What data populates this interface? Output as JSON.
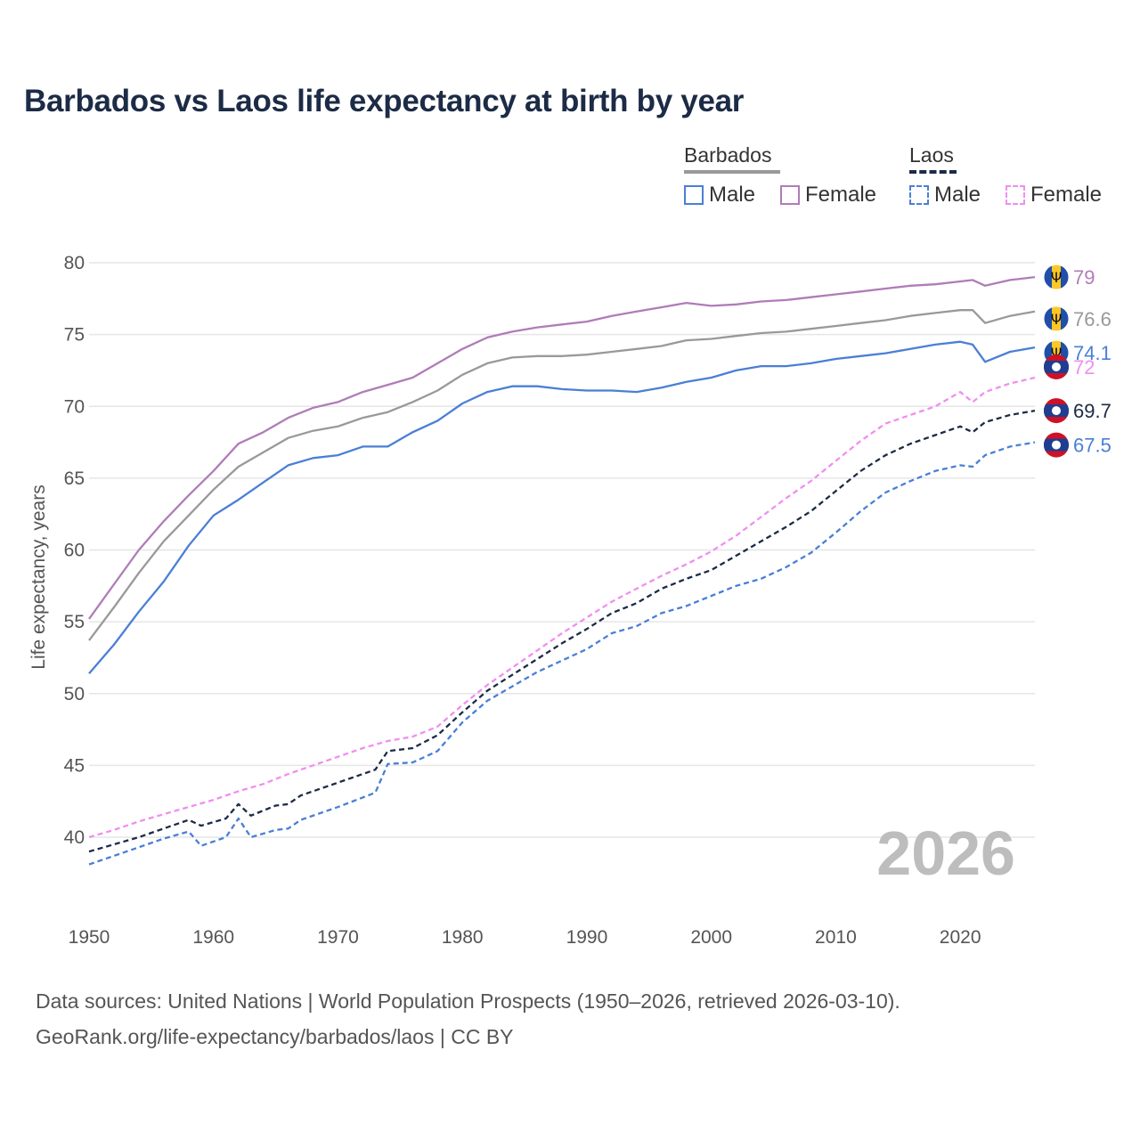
{
  "chart_data": {
    "type": "line",
    "title": "Barbados vs Laos life expectancy at birth by year",
    "xlabel": "",
    "ylabel": "Life expectancy, years",
    "xlim": [
      1950,
      2026
    ],
    "ylim": [
      35,
      82
    ],
    "x_ticks": [
      1950,
      1960,
      1970,
      1980,
      1990,
      2000,
      2010,
      2020
    ],
    "y_ticks": [
      40,
      45,
      50,
      55,
      60,
      65,
      70,
      75,
      80
    ],
    "current_year": "2026",
    "legend": {
      "groups": [
        {
          "label": "Barbados",
          "style": "solid",
          "color": "#999999",
          "items": [
            {
              "label": "Male",
              "color": "#4a7fd6"
            },
            {
              "label": "Female",
              "color": "#b07cb8"
            }
          ]
        },
        {
          "label": "Laos",
          "style": "dashed",
          "color": "#1c2b46",
          "items": [
            {
              "label": "Male",
              "color": "#4a7fd6"
            },
            {
              "label": "Female",
              "color": "#f08ef0"
            }
          ]
        }
      ]
    },
    "series": [
      {
        "name": "Barbados Female",
        "country": "Barbados",
        "color": "#b07cb8",
        "dash": false,
        "end_label": "79",
        "points": [
          [
            1950,
            55.2
          ],
          [
            1952,
            57.6
          ],
          [
            1954,
            60.0
          ],
          [
            1956,
            62.0
          ],
          [
            1958,
            63.8
          ],
          [
            1960,
            65.5
          ],
          [
            1962,
            67.4
          ],
          [
            1964,
            68.2
          ],
          [
            1966,
            69.2
          ],
          [
            1968,
            69.9
          ],
          [
            1970,
            70.3
          ],
          [
            1972,
            71.0
          ],
          [
            1974,
            71.5
          ],
          [
            1976,
            72.0
          ],
          [
            1978,
            73.0
          ],
          [
            1980,
            74.0
          ],
          [
            1982,
            74.8
          ],
          [
            1984,
            75.2
          ],
          [
            1986,
            75.5
          ],
          [
            1988,
            75.7
          ],
          [
            1990,
            75.9
          ],
          [
            1992,
            76.3
          ],
          [
            1994,
            76.6
          ],
          [
            1996,
            76.9
          ],
          [
            1998,
            77.2
          ],
          [
            2000,
            77.0
          ],
          [
            2002,
            77.1
          ],
          [
            2004,
            77.3
          ],
          [
            2006,
            77.4
          ],
          [
            2008,
            77.6
          ],
          [
            2010,
            77.8
          ],
          [
            2012,
            78.0
          ],
          [
            2014,
            78.2
          ],
          [
            2016,
            78.4
          ],
          [
            2018,
            78.5
          ],
          [
            2020,
            78.7
          ],
          [
            2021,
            78.8
          ],
          [
            2022,
            78.4
          ],
          [
            2024,
            78.8
          ],
          [
            2026,
            79.0
          ]
        ]
      },
      {
        "name": "Barbados Total",
        "country": "Barbados",
        "color": "#999999",
        "dash": false,
        "end_label": "76.6",
        "points": [
          [
            1950,
            53.7
          ],
          [
            1952,
            56.0
          ],
          [
            1954,
            58.4
          ],
          [
            1956,
            60.6
          ],
          [
            1958,
            62.4
          ],
          [
            1960,
            64.2
          ],
          [
            1962,
            65.8
          ],
          [
            1964,
            66.8
          ],
          [
            1966,
            67.8
          ],
          [
            1968,
            68.3
          ],
          [
            1970,
            68.6
          ],
          [
            1972,
            69.2
          ],
          [
            1974,
            69.6
          ],
          [
            1976,
            70.3
          ],
          [
            1978,
            71.1
          ],
          [
            1980,
            72.2
          ],
          [
            1982,
            73.0
          ],
          [
            1984,
            73.4
          ],
          [
            1986,
            73.5
          ],
          [
            1988,
            73.5
          ],
          [
            1990,
            73.6
          ],
          [
            1992,
            73.8
          ],
          [
            1994,
            74.0
          ],
          [
            1996,
            74.2
          ],
          [
            1998,
            74.6
          ],
          [
            2000,
            74.7
          ],
          [
            2002,
            74.9
          ],
          [
            2004,
            75.1
          ],
          [
            2006,
            75.2
          ],
          [
            2008,
            75.4
          ],
          [
            2010,
            75.6
          ],
          [
            2012,
            75.8
          ],
          [
            2014,
            76.0
          ],
          [
            2016,
            76.3
          ],
          [
            2018,
            76.5
          ],
          [
            2020,
            76.7
          ],
          [
            2021,
            76.7
          ],
          [
            2022,
            75.8
          ],
          [
            2024,
            76.3
          ],
          [
            2026,
            76.6
          ]
        ]
      },
      {
        "name": "Barbados Male",
        "country": "Barbados",
        "color": "#4a7fd6",
        "dash": false,
        "end_label": "74.1",
        "points": [
          [
            1950,
            51.4
          ],
          [
            1952,
            53.4
          ],
          [
            1954,
            55.7
          ],
          [
            1956,
            57.8
          ],
          [
            1958,
            60.3
          ],
          [
            1960,
            62.4
          ],
          [
            1962,
            63.5
          ],
          [
            1964,
            64.7
          ],
          [
            1966,
            65.9
          ],
          [
            1968,
            66.4
          ],
          [
            1970,
            66.6
          ],
          [
            1972,
            67.2
          ],
          [
            1974,
            67.2
          ],
          [
            1976,
            68.2
          ],
          [
            1978,
            69.0
          ],
          [
            1980,
            70.2
          ],
          [
            1982,
            71.0
          ],
          [
            1984,
            71.4
          ],
          [
            1986,
            71.4
          ],
          [
            1988,
            71.2
          ],
          [
            1990,
            71.1
          ],
          [
            1992,
            71.1
          ],
          [
            1994,
            71.0
          ],
          [
            1996,
            71.3
          ],
          [
            1998,
            71.7
          ],
          [
            2000,
            72.0
          ],
          [
            2002,
            72.5
          ],
          [
            2004,
            72.8
          ],
          [
            2006,
            72.8
          ],
          [
            2008,
            73.0
          ],
          [
            2010,
            73.3
          ],
          [
            2012,
            73.5
          ],
          [
            2014,
            73.7
          ],
          [
            2016,
            74.0
          ],
          [
            2018,
            74.3
          ],
          [
            2020,
            74.5
          ],
          [
            2021,
            74.3
          ],
          [
            2022,
            73.1
          ],
          [
            2024,
            73.8
          ],
          [
            2026,
            74.1
          ]
        ]
      },
      {
        "name": "Laos Female",
        "country": "Laos",
        "color": "#f08ef0",
        "dash": true,
        "end_label": "72",
        "points": [
          [
            1950,
            40.0
          ],
          [
            1952,
            40.5
          ],
          [
            1954,
            41.1
          ],
          [
            1956,
            41.6
          ],
          [
            1958,
            42.1
          ],
          [
            1960,
            42.6
          ],
          [
            1962,
            43.2
          ],
          [
            1964,
            43.7
          ],
          [
            1966,
            44.4
          ],
          [
            1968,
            45.0
          ],
          [
            1970,
            45.6
          ],
          [
            1972,
            46.2
          ],
          [
            1974,
            46.7
          ],
          [
            1976,
            47.0
          ],
          [
            1978,
            47.7
          ],
          [
            1980,
            49.2
          ],
          [
            1982,
            50.6
          ],
          [
            1984,
            51.8
          ],
          [
            1986,
            53.0
          ],
          [
            1988,
            54.2
          ],
          [
            1990,
            55.3
          ],
          [
            1992,
            56.4
          ],
          [
            1994,
            57.3
          ],
          [
            1996,
            58.2
          ],
          [
            1998,
            59.0
          ],
          [
            2000,
            59.9
          ],
          [
            2002,
            61.0
          ],
          [
            2004,
            62.3
          ],
          [
            2006,
            63.6
          ],
          [
            2008,
            64.8
          ],
          [
            2010,
            66.2
          ],
          [
            2012,
            67.6
          ],
          [
            2014,
            68.8
          ],
          [
            2016,
            69.4
          ],
          [
            2018,
            70.0
          ],
          [
            2020,
            71.0
          ],
          [
            2021,
            70.3
          ],
          [
            2022,
            71.0
          ],
          [
            2024,
            71.6
          ],
          [
            2026,
            72.0
          ]
        ]
      },
      {
        "name": "Laos Total",
        "country": "Laos",
        "color": "#1c2b46",
        "dash": true,
        "end_label": "69.7",
        "points": [
          [
            1950,
            39.0
          ],
          [
            1952,
            39.5
          ],
          [
            1954,
            40.0
          ],
          [
            1956,
            40.6
          ],
          [
            1958,
            41.2
          ],
          [
            1959,
            40.8
          ],
          [
            1961,
            41.3
          ],
          [
            1962,
            42.3
          ],
          [
            1963,
            41.5
          ],
          [
            1965,
            42.2
          ],
          [
            1966,
            42.3
          ],
          [
            1967,
            42.9
          ],
          [
            1970,
            43.8
          ],
          [
            1973,
            44.7
          ],
          [
            1974,
            46.0
          ],
          [
            1976,
            46.2
          ],
          [
            1978,
            47.1
          ],
          [
            1980,
            48.7
          ],
          [
            1982,
            50.2
          ],
          [
            1984,
            51.3
          ],
          [
            1986,
            52.4
          ],
          [
            1988,
            53.5
          ],
          [
            1990,
            54.5
          ],
          [
            1992,
            55.6
          ],
          [
            1994,
            56.3
          ],
          [
            1996,
            57.3
          ],
          [
            1998,
            58.0
          ],
          [
            2000,
            58.6
          ],
          [
            2002,
            59.6
          ],
          [
            2004,
            60.6
          ],
          [
            2006,
            61.6
          ],
          [
            2008,
            62.7
          ],
          [
            2010,
            64.1
          ],
          [
            2012,
            65.5
          ],
          [
            2014,
            66.6
          ],
          [
            2016,
            67.4
          ],
          [
            2018,
            68.0
          ],
          [
            2020,
            68.6
          ],
          [
            2021,
            68.2
          ],
          [
            2022,
            68.9
          ],
          [
            2024,
            69.4
          ],
          [
            2026,
            69.7
          ]
        ]
      },
      {
        "name": "Laos Male",
        "country": "Laos",
        "color": "#4a7fd6",
        "dash": true,
        "end_label": "67.5",
        "points": [
          [
            1950,
            38.1
          ],
          [
            1952,
            38.7
          ],
          [
            1954,
            39.3
          ],
          [
            1956,
            39.9
          ],
          [
            1958,
            40.4
          ],
          [
            1959,
            39.4
          ],
          [
            1961,
            40.0
          ],
          [
            1962,
            41.3
          ],
          [
            1963,
            40.0
          ],
          [
            1965,
            40.5
          ],
          [
            1966,
            40.6
          ],
          [
            1967,
            41.2
          ],
          [
            1970,
            42.1
          ],
          [
            1973,
            43.1
          ],
          [
            1974,
            45.1
          ],
          [
            1976,
            45.2
          ],
          [
            1978,
            46.0
          ],
          [
            1980,
            48.0
          ],
          [
            1982,
            49.5
          ],
          [
            1984,
            50.5
          ],
          [
            1986,
            51.5
          ],
          [
            1988,
            52.3
          ],
          [
            1990,
            53.1
          ],
          [
            1992,
            54.2
          ],
          [
            1994,
            54.7
          ],
          [
            1996,
            55.6
          ],
          [
            1998,
            56.1
          ],
          [
            2000,
            56.8
          ],
          [
            2002,
            57.5
          ],
          [
            2004,
            58.0
          ],
          [
            2006,
            58.8
          ],
          [
            2008,
            59.8
          ],
          [
            2010,
            61.2
          ],
          [
            2012,
            62.7
          ],
          [
            2014,
            64.0
          ],
          [
            2016,
            64.8
          ],
          [
            2018,
            65.5
          ],
          [
            2020,
            65.9
          ],
          [
            2021,
            65.8
          ],
          [
            2022,
            66.6
          ],
          [
            2024,
            67.2
          ],
          [
            2026,
            67.5
          ]
        ]
      }
    ]
  },
  "footer": {
    "source_line": "Data sources: United Nations | World Population Prospects (1950–2026, retrieved 2026-03-10).",
    "url_line": "GeoRank.org/life-expectancy/barbados/laos | CC BY"
  },
  "colors": {
    "title": "#1c2b46",
    "barbados_flag_blue": "#1f4fa8",
    "barbados_flag_gold": "#ffc726",
    "laos_flag_red": "#ce1126",
    "laos_flag_blue": "#1f3e8f"
  }
}
